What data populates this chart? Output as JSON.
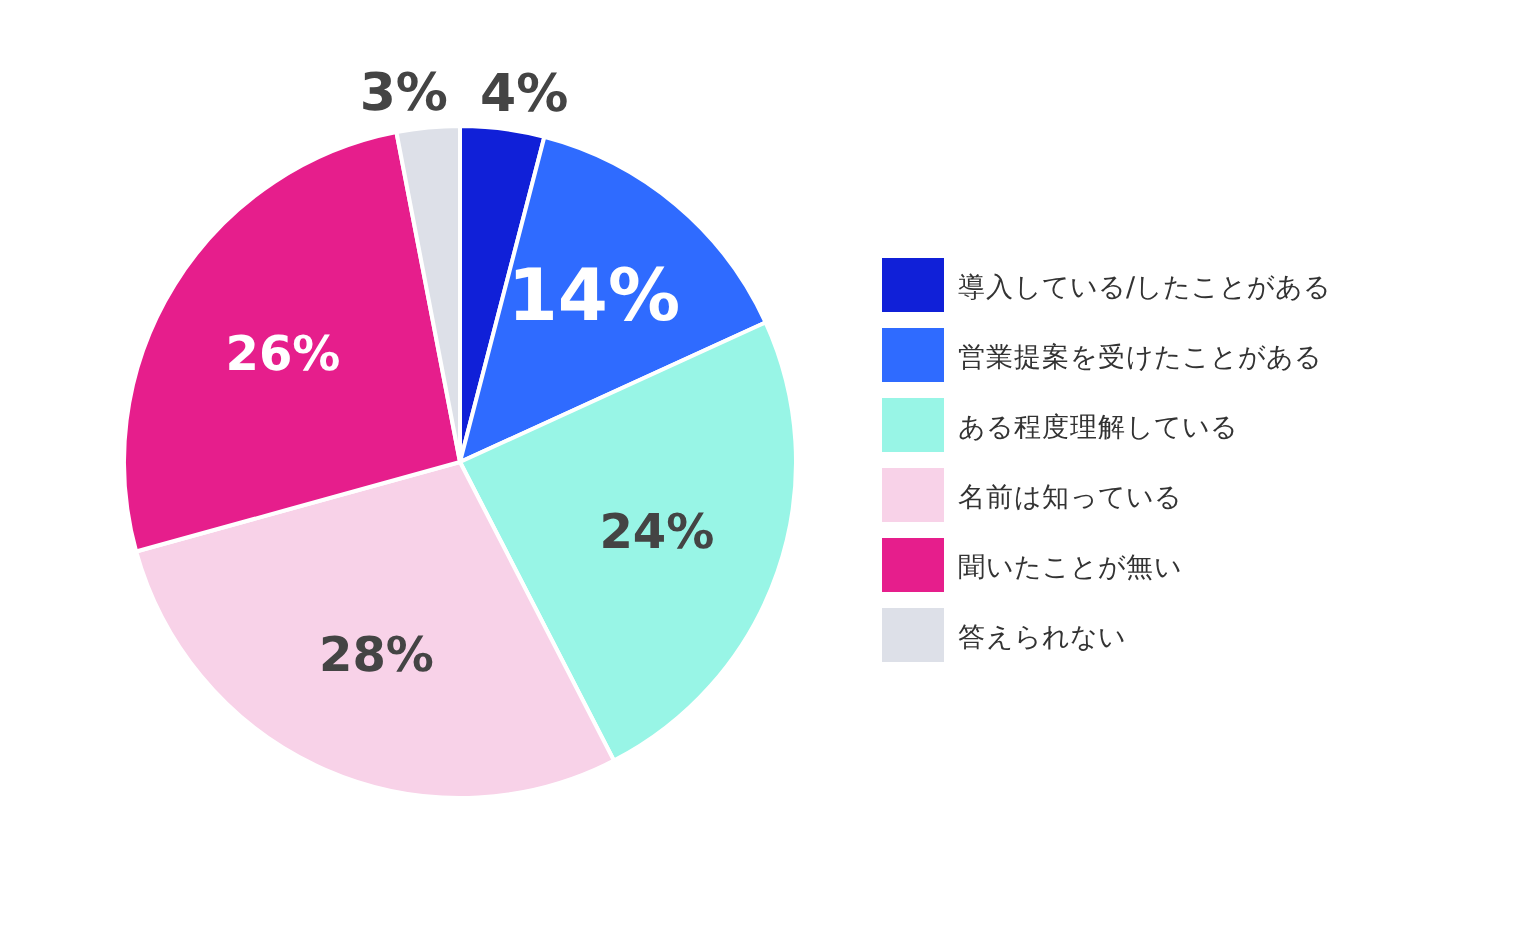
{
  "chart_data": {
    "type": "pie",
    "categories": [
      "導入している/したことがある",
      "営業提案を受けたことがある",
      "ある程度理解している",
      "名前は知っている",
      "聞いたことが無い",
      "答えられない"
    ],
    "values": [
      4,
      14,
      24,
      28,
      26,
      3
    ],
    "colors": [
      "#1020d8",
      "#2f6bff",
      "#98f5e6",
      "#f8d2e8",
      "#e61e8c",
      "#dde0e8"
    ],
    "value_labels": [
      "4%",
      "14%",
      "24%",
      "28%",
      "26%",
      "3%"
    ],
    "legend": "right"
  }
}
